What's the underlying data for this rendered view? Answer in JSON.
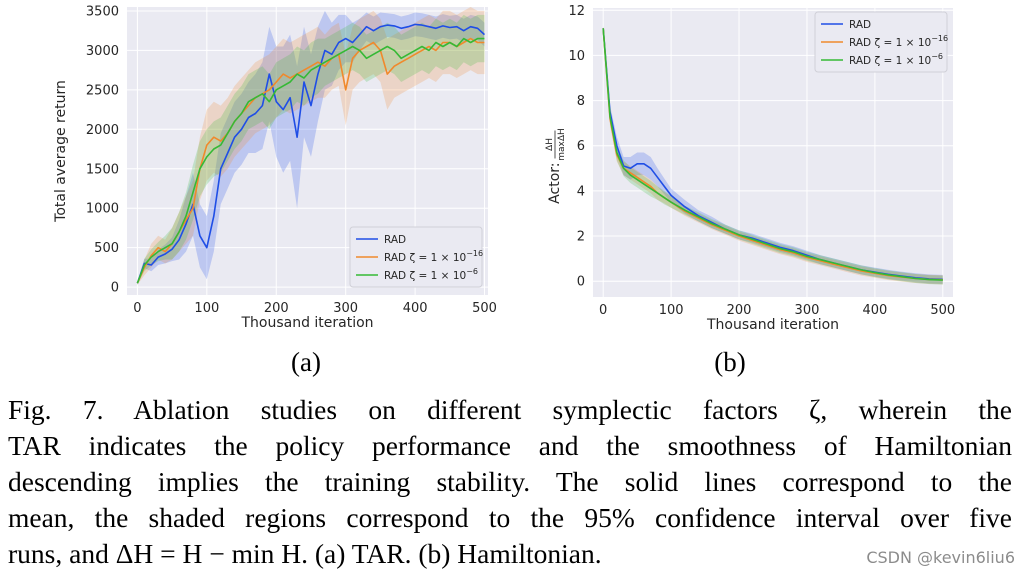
{
  "figure": {
    "label_a": "(a)",
    "label_b": "(b)"
  },
  "colors": {
    "rad": "#1f4ee6",
    "z16": "#f0892c",
    "z6": "#35b935",
    "plot_bg": "#eaeaf2",
    "grid": "#ffffff"
  },
  "chart_data": [
    {
      "type": "line",
      "title": "",
      "xlabel": "Thousand iteration",
      "ylabel": "Total average return",
      "xlim": [
        -15,
        505
      ],
      "ylim": [
        -100,
        3550
      ],
      "xticks": [
        "0",
        "100",
        "200",
        "300",
        "400",
        "500"
      ],
      "yticks": [
        "0",
        "500",
        "1000",
        "1500",
        "2000",
        "2500",
        "3000",
        "3500"
      ],
      "legend_position": "lower-right",
      "series": [
        {
          "name": "RAD",
          "x": [
            0,
            10,
            20,
            30,
            40,
            50,
            60,
            70,
            80,
            90,
            100,
            110,
            120,
            130,
            140,
            150,
            160,
            170,
            180,
            190,
            200,
            210,
            220,
            230,
            240,
            250,
            260,
            270,
            280,
            290,
            300,
            310,
            320,
            330,
            340,
            350,
            360,
            370,
            380,
            390,
            400,
            410,
            420,
            430,
            440,
            450,
            460,
            470,
            480,
            490,
            500
          ],
          "values": [
            50,
            300,
            280,
            380,
            420,
            480,
            600,
            800,
            1050,
            650,
            500,
            900,
            1500,
            1700,
            1900,
            2000,
            2150,
            2200,
            2300,
            2700,
            2350,
            2250,
            2400,
            1900,
            2600,
            2300,
            2700,
            3000,
            2950,
            3100,
            3150,
            3100,
            3200,
            3300,
            3250,
            3300,
            3320,
            3310,
            3280,
            3300,
            3330,
            3320,
            3300,
            3280,
            3310,
            3290,
            3300,
            3250,
            3300,
            3280,
            3200
          ],
          "ci_halfwidth": [
            20,
            60,
            80,
            100,
            120,
            150,
            250,
            350,
            400,
            400,
            400,
            450,
            450,
            450,
            450,
            450,
            450,
            500,
            550,
            600,
            700,
            800,
            800,
            900,
            700,
            650,
            600,
            500,
            400,
            350,
            300,
            250,
            200,
            180,
            180,
            180,
            150,
            150,
            150,
            150,
            150,
            150,
            150,
            150,
            150,
            150,
            150,
            150,
            150,
            150,
            150
          ]
        },
        {
          "name": "RAD ζ = 1 × 10^−16",
          "x": [
            0,
            10,
            20,
            30,
            40,
            50,
            60,
            70,
            80,
            90,
            100,
            110,
            120,
            130,
            140,
            150,
            160,
            170,
            180,
            190,
            200,
            210,
            220,
            230,
            240,
            250,
            260,
            270,
            280,
            290,
            300,
            310,
            320,
            330,
            340,
            350,
            360,
            370,
            380,
            390,
            400,
            410,
            420,
            430,
            440,
            450,
            460,
            470,
            480,
            490,
            500
          ],
          "values": [
            50,
            250,
            400,
            500,
            450,
            550,
            700,
            850,
            1000,
            1500,
            1800,
            1900,
            1850,
            1950,
            2100,
            2200,
            2300,
            2400,
            2450,
            2500,
            2600,
            2700,
            2650,
            2700,
            2750,
            2800,
            2850,
            2800,
            2900,
            2950,
            2500,
            2900,
            3000,
            3050,
            3100,
            3000,
            2700,
            2800,
            2850,
            2900,
            2950,
            3000,
            3050,
            3000,
            3100,
            3100,
            3050,
            3100,
            3150,
            3100,
            3100
          ],
          "ci_halfwidth": [
            20,
            100,
            150,
            150,
            150,
            200,
            250,
            300,
            350,
            400,
            450,
            450,
            450,
            450,
            450,
            450,
            450,
            450,
            450,
            450,
            450,
            450,
            450,
            450,
            450,
            450,
            450,
            400,
            400,
            400,
            450,
            400,
            400,
            400,
            400,
            400,
            450,
            400,
            400,
            400,
            400,
            400,
            400,
            400,
            400,
            400,
            400,
            400,
            400,
            400,
            400
          ]
        },
        {
          "name": "RAD ζ = 1 × 10^−6",
          "x": [
            0,
            10,
            20,
            30,
            40,
            50,
            60,
            70,
            80,
            90,
            100,
            110,
            120,
            130,
            140,
            150,
            160,
            170,
            180,
            190,
            200,
            210,
            220,
            230,
            240,
            250,
            260,
            270,
            280,
            290,
            300,
            310,
            320,
            330,
            340,
            350,
            360,
            370,
            380,
            390,
            400,
            410,
            420,
            430,
            440,
            450,
            460,
            470,
            480,
            490,
            500
          ],
          "values": [
            50,
            280,
            380,
            450,
            500,
            550,
            700,
            900,
            1200,
            1500,
            1650,
            1750,
            1800,
            1950,
            2100,
            2200,
            2350,
            2400,
            2450,
            2350,
            2500,
            2550,
            2600,
            2700,
            2650,
            2750,
            2800,
            2850,
            2900,
            2950,
            3000,
            3050,
            3000,
            2900,
            2950,
            3000,
            3050,
            3000,
            2900,
            2950,
            3000,
            3050,
            3000,
            3100,
            3050,
            3100,
            3050,
            3150,
            3100,
            3150,
            3150
          ],
          "ci_halfwidth": [
            20,
            80,
            100,
            120,
            150,
            200,
            250,
            300,
            350,
            350,
            350,
            350,
            350,
            350,
            350,
            350,
            350,
            350,
            350,
            350,
            350,
            350,
            350,
            350,
            350,
            350,
            350,
            300,
            300,
            300,
            300,
            300,
            300,
            300,
            300,
            300,
            300,
            300,
            300,
            300,
            300,
            300,
            300,
            300,
            300,
            300,
            300,
            300,
            300,
            300,
            300
          ]
        }
      ]
    },
    {
      "type": "line",
      "title": "",
      "xlabel": "Thousand iteration",
      "ylabel": "Actor: ΔH / maxΔH",
      "xlim": [
        -15,
        515
      ],
      "ylim": [
        -0.7,
        12.1
      ],
      "xticks": [
        "0",
        "100",
        "200",
        "300",
        "400",
        "500"
      ],
      "yticks": [
        "0",
        "2",
        "4",
        "6",
        "8",
        "10",
        "12"
      ],
      "legend_position": "upper-right",
      "series": [
        {
          "name": "RAD",
          "x": [
            0,
            10,
            20,
            30,
            40,
            50,
            60,
            70,
            80,
            90,
            100,
            120,
            140,
            160,
            180,
            200,
            220,
            240,
            260,
            280,
            300,
            320,
            340,
            360,
            380,
            400,
            420,
            440,
            460,
            480,
            500
          ],
          "values": [
            11.2,
            7.5,
            6.0,
            5.1,
            5.0,
            5.2,
            5.2,
            5.0,
            4.6,
            4.2,
            3.8,
            3.3,
            2.9,
            2.6,
            2.3,
            2.05,
            1.9,
            1.7,
            1.5,
            1.35,
            1.15,
            0.95,
            0.8,
            0.65,
            0.5,
            0.4,
            0.3,
            0.22,
            0.15,
            0.1,
            0.08
          ],
          "ci_halfwidth": [
            0.1,
            0.3,
            0.4,
            0.4,
            0.5,
            0.5,
            0.5,
            0.5,
            0.4,
            0.35,
            0.3,
            0.3,
            0.25,
            0.25,
            0.2,
            0.2,
            0.2,
            0.2,
            0.2,
            0.2,
            0.2,
            0.2,
            0.2,
            0.2,
            0.2,
            0.2,
            0.2,
            0.2,
            0.2,
            0.2,
            0.2
          ]
        },
        {
          "name": "RAD ζ = 1 × 10^−16",
          "x": [
            0,
            10,
            20,
            30,
            40,
            50,
            60,
            70,
            80,
            90,
            100,
            120,
            140,
            160,
            180,
            200,
            220,
            240,
            260,
            280,
            300,
            320,
            340,
            360,
            380,
            400,
            420,
            440,
            460,
            480,
            500
          ],
          "values": [
            11.2,
            7.2,
            5.6,
            5.0,
            4.8,
            4.6,
            4.4,
            4.2,
            3.9,
            3.7,
            3.5,
            3.1,
            2.8,
            2.5,
            2.25,
            2.0,
            1.8,
            1.6,
            1.4,
            1.25,
            1.05,
            0.9,
            0.75,
            0.6,
            0.45,
            0.35,
            0.25,
            0.18,
            0.12,
            0.08,
            0.06
          ],
          "ci_halfwidth": [
            0.1,
            0.3,
            0.3,
            0.3,
            0.3,
            0.3,
            0.3,
            0.3,
            0.3,
            0.25,
            0.25,
            0.2,
            0.2,
            0.2,
            0.2,
            0.2,
            0.2,
            0.2,
            0.2,
            0.2,
            0.2,
            0.2,
            0.2,
            0.2,
            0.2,
            0.2,
            0.2,
            0.2,
            0.2,
            0.2,
            0.2
          ]
        },
        {
          "name": "RAD ζ = 1 × 10^−6",
          "x": [
            0,
            10,
            20,
            30,
            40,
            50,
            60,
            70,
            80,
            90,
            100,
            120,
            140,
            160,
            180,
            200,
            220,
            240,
            260,
            280,
            300,
            320,
            340,
            360,
            380,
            400,
            420,
            440,
            460,
            480,
            500
          ],
          "values": [
            11.2,
            7.3,
            5.7,
            5.0,
            4.7,
            4.5,
            4.3,
            4.1,
            3.9,
            3.7,
            3.5,
            3.15,
            2.85,
            2.55,
            2.3,
            2.05,
            1.85,
            1.65,
            1.45,
            1.3,
            1.1,
            0.95,
            0.8,
            0.65,
            0.5,
            0.38,
            0.28,
            0.2,
            0.12,
            0.07,
            0.05
          ],
          "ci_halfwidth": [
            0.1,
            0.3,
            0.35,
            0.35,
            0.35,
            0.35,
            0.35,
            0.35,
            0.3,
            0.3,
            0.25,
            0.2,
            0.2,
            0.2,
            0.2,
            0.2,
            0.2,
            0.2,
            0.2,
            0.2,
            0.2,
            0.2,
            0.2,
            0.2,
            0.2,
            0.2,
            0.2,
            0.2,
            0.2,
            0.2,
            0.2
          ]
        }
      ]
    }
  ],
  "caption": {
    "lines": [
      "Fig. 7.    Ablation studies on different symplectic factors ζ, wherein the",
      "TAR indicates the policy performance and the smoothness of Hamiltonian",
      "descending implies the training stability. The solid lines correspond to the",
      "mean, the shaded regions correspond to the 95% confidence interval over five",
      "runs, and ΔH = H − min H. (a) TAR. (b) Hamiltonian."
    ]
  },
  "watermark": "CSDN @kevin6liu6"
}
